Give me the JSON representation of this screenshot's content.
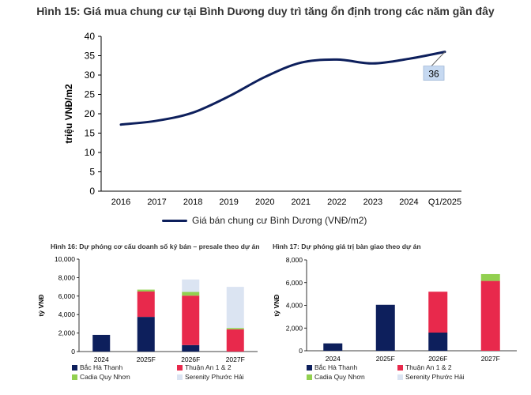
{
  "chart_data": [
    {
      "type": "line",
      "title": "Hình 15: Giá mua chung cư tại Bình Dương duy trì tăng ổn định trong các năm gần đây",
      "ylabel": "triệu VNĐ/m2",
      "xlabel": "",
      "categories": [
        "2016",
        "2017",
        "2018",
        "2019",
        "2020",
        "2021",
        "2022",
        "2023",
        "2024",
        "Q1/2025"
      ],
      "series": [
        {
          "name": "Giá bán chung cư Bình Dương (VNĐ/m2)",
          "values": [
            17.2,
            18.2,
            20.3,
            24.5,
            29.5,
            33.2,
            34.0,
            33.0,
            34.2,
            36.0
          ]
        }
      ],
      "ylim": [
        0,
        40
      ],
      "yticks": [
        "0",
        "5",
        "10",
        "15",
        "20",
        "25",
        "30",
        "35",
        "40"
      ],
      "annotation": "36",
      "color": "#0d1f5c",
      "legend_position": "bottom"
    },
    {
      "type": "bar",
      "title": "Hình 16: Dự phóng cơ cấu doanh số ký bán – presale theo dự án",
      "ylabel": "tỷ VNĐ",
      "categories": [
        "2024",
        "2025F",
        "2026F",
        "2027F"
      ],
      "series": [
        {
          "name": "Bắc Hà Thanh",
          "values": [
            1800,
            3750,
            700,
            0
          ]
        },
        {
          "name": "Thuận An 1 & 2",
          "values": [
            0,
            2750,
            5350,
            2400
          ]
        },
        {
          "name": "Cadia Quy Nhơn",
          "values": [
            0,
            200,
            400,
            150
          ]
        },
        {
          "name": "Serenity Phước Hải",
          "values": [
            0,
            0,
            1350,
            4450
          ]
        }
      ],
      "ylim": [
        0,
        10000
      ],
      "yticks": [
        "0",
        "2,000",
        "4,000",
        "6,000",
        "8,000",
        "10,000"
      ],
      "stacked": true,
      "legend_position": "bottom"
    },
    {
      "type": "bar",
      "title": "Hình 17: Dự phóng giá trị bàn giao theo dự án",
      "ylabel": "tỷ VNĐ",
      "categories": [
        "2024",
        "2025F",
        "2026F",
        "2027F"
      ],
      "series": [
        {
          "name": "Bắc Hà Thanh",
          "values": [
            650,
            4050,
            1600,
            0
          ]
        },
        {
          "name": "Thuận An 1 & 2",
          "values": [
            0,
            0,
            3600,
            6150
          ]
        },
        {
          "name": "Cadia Quy Nhơn",
          "values": [
            0,
            0,
            0,
            600
          ]
        },
        {
          "name": "Serenity Phước Hải",
          "values": [
            0,
            0,
            0,
            0
          ]
        }
      ],
      "ylim": [
        0,
        8000
      ],
      "yticks": [
        "0",
        "2,000",
        "4,000",
        "6,000",
        "8,000"
      ],
      "stacked": true,
      "legend_position": "bottom"
    }
  ],
  "colors": {
    "Bắc Hà Thanh": "#0d1f5c",
    "Thuận An 1 & 2": "#e8294c",
    "Cadia Quy Nhơn": "#92d050",
    "Serenity Phước Hải": "#dbe4f2",
    "line": "#0d1f5c",
    "annotation_fill": "#c6d9f1"
  },
  "legend_labels": [
    "Bắc Hà Thanh",
    "Thuận An 1 & 2",
    "Cadia Quy Nhơn",
    "Serenity Phước Hải"
  ]
}
